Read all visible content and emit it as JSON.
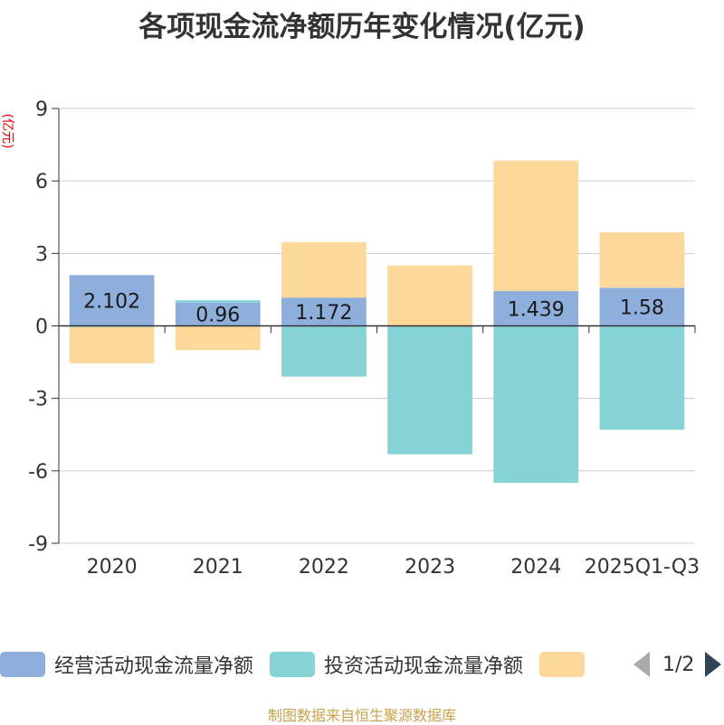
{
  "title": "各项现金流净额历年变化情况(亿元)",
  "footer": "制图数据来自恒生聚源数据库",
  "legend": {
    "items": [
      {
        "label": "经营活动现金流量净额",
        "color": "#8eaedb"
      },
      {
        "label": "投资活动现金流量净额",
        "color": "#86d3d6"
      },
      {
        "label": "",
        "color": "#fdd89b"
      }
    ],
    "page": "1/2"
  },
  "chart_data": {
    "type": "bar",
    "stacked": true,
    "categories": [
      "2020",
      "2021",
      "2022",
      "2023",
      "2024",
      "2025Q1-Q3"
    ],
    "ylabel": "(亿元)",
    "ylim": [
      -9,
      9
    ],
    "yticks": [
      9,
      6,
      3,
      0,
      -3,
      -6,
      -9
    ],
    "grid": true,
    "legend_position": "bottom",
    "series": [
      {
        "name": "经营活动现金流量净额",
        "color": "#8eaedb",
        "values": [
          2.102,
          0.96,
          1.172,
          -0.015,
          1.439,
          1.58
        ],
        "labels": [
          "2.102",
          "0.96",
          "1.172",
          "",
          "1.439",
          "1.58"
        ]
      },
      {
        "name": "投资活动现金流量净额",
        "color": "#86d3d6",
        "values": [
          -0.05,
          0.1,
          -2.1,
          -5.3,
          -6.5,
          -4.3
        ]
      },
      {
        "color": "#fdd89b",
        "values": [
          -1.5,
          -1.0,
          2.3,
          2.5,
          5.4,
          2.3
        ]
      }
    ]
  }
}
